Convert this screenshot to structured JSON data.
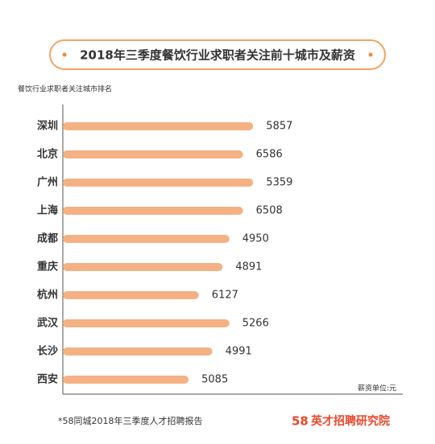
{
  "chart_data": {
    "type": "bar",
    "orientation": "horizontal",
    "title": "2018年三季度餐饮行业求职者关注前十城市及薪资",
    "subtitle": "餐饮行业求职者关注城市排名",
    "unit_note": "薪资单位:元",
    "categories": [
      "深圳",
      "北京",
      "广州",
      "上海",
      "成都",
      "重庆",
      "杭州",
      "武汉",
      "长沙",
      "西安"
    ],
    "values": [
      56,
      53,
      56,
      53,
      49,
      47,
      40,
      49,
      44,
      37
    ],
    "salaries": [
      5857,
      6586,
      5359,
      6508,
      4950,
      4891,
      6127,
      5266,
      4991,
      5085
    ],
    "color": "#f4b183",
    "xlim": [
      0,
      100
    ],
    "source": "*58同城2018年三季度人才招聘报告",
    "brand": {
      "mark": "58",
      "name": "英才招聘研究院"
    }
  }
}
